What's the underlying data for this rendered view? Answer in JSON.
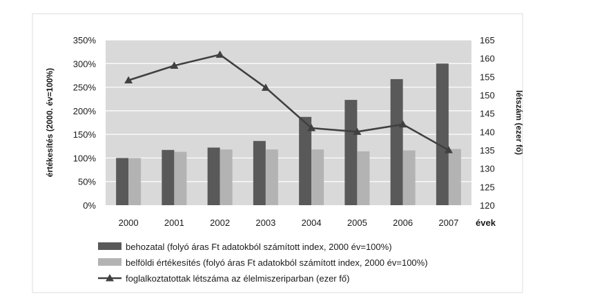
{
  "chart_data": {
    "type": "bar",
    "categories": [
      "2000",
      "2001",
      "2002",
      "2003",
      "2004",
      "2005",
      "2006",
      "2007"
    ],
    "xlabel": "évek",
    "ylabel": "értékesítés (2000. év=100%)",
    "y2label": "létszám (ezer fő)",
    "ylim": [
      0,
      350
    ],
    "y2lim": [
      120,
      165
    ],
    "y_ticks": [
      "0%",
      "50%",
      "100%",
      "150%",
      "200%",
      "250%",
      "300%",
      "350%"
    ],
    "y2_ticks": [
      "120",
      "125",
      "130",
      "135",
      "140",
      "145",
      "150",
      "155",
      "160",
      "165"
    ],
    "grid": true,
    "legend_position": "bottom",
    "series": [
      {
        "name": "behozatal (folyó áras Ft adatokból számított index, 2000 év=100%)",
        "type": "bar",
        "axis": "left",
        "color": "#595959",
        "values": [
          100,
          117,
          122,
          136,
          187,
          223,
          267,
          300
        ]
      },
      {
        "name": "belföldi értékesítés (folyó áras Ft adatokból számított index, 2000 év=100%)",
        "type": "bar",
        "axis": "left",
        "color": "#b3b3b3",
        "values": [
          100,
          113,
          118,
          118,
          118,
          114,
          116,
          119
        ]
      },
      {
        "name": "foglalkoztatottak létszáma az élelmiszeriparban (ezer fő)",
        "type": "line",
        "axis": "right",
        "color": "#404040",
        "marker": "triangle",
        "values": [
          154,
          158,
          161,
          152,
          141,
          140,
          142,
          135
        ]
      }
    ],
    "plot_background": "#d9d9d9"
  }
}
